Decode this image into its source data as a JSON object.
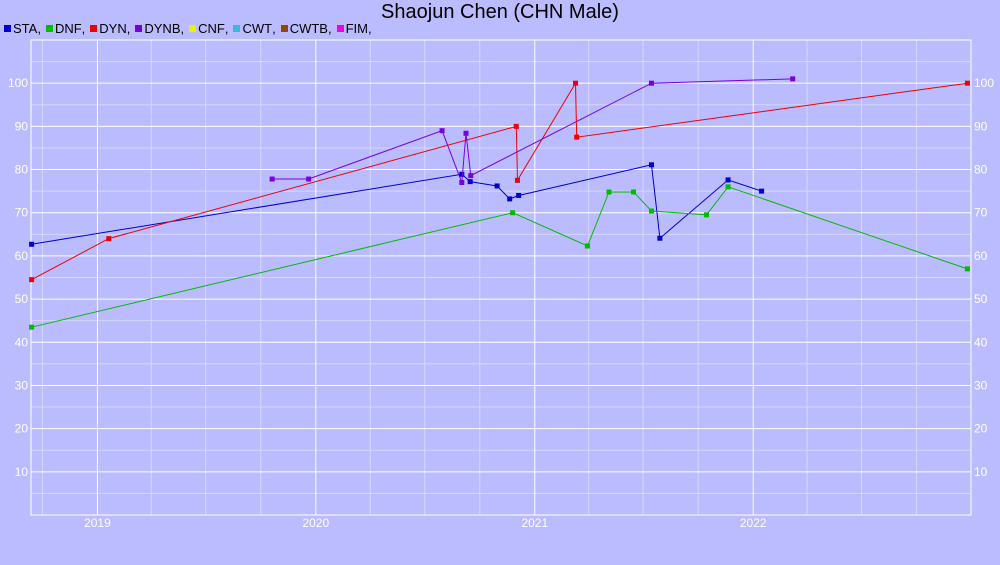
{
  "chart_data": {
    "type": "line",
    "title": "Shaojun Chen (CHN Male)",
    "xlabel": "",
    "ylabel": "",
    "x_ticks": [
      "2019",
      "2020",
      "2021",
      "2022"
    ],
    "y_ticks": [
      "10",
      "20",
      "30",
      "40",
      "50",
      "60",
      "70",
      "80",
      "90",
      "100"
    ],
    "ylim": [
      0,
      110
    ],
    "xlim": [
      "2018-09-12",
      "2022-12-31"
    ],
    "grid": true,
    "legend_position": "top-left",
    "legend": [
      {
        "name": "STA",
        "color": "#0000cc"
      },
      {
        "name": "DNF",
        "color": "#00bb00"
      },
      {
        "name": "DYN",
        "color": "#ee0000"
      },
      {
        "name": "DYNB",
        "color": "#7700dd"
      },
      {
        "name": "CNF",
        "color": "#eeee00"
      },
      {
        "name": "CWT",
        "color": "#33bbdd"
      },
      {
        "name": "CWTB",
        "color": "#994400"
      },
      {
        "name": "FIM",
        "color": "#ee00ee"
      }
    ],
    "series": [
      {
        "name": "STA",
        "color": "#0000cc",
        "points": [
          [
            "2018-09-13",
            62.7
          ],
          [
            "2020-09-01",
            78.9
          ],
          [
            "2020-09-15",
            77.2
          ],
          [
            "2020-10-30",
            76.2
          ],
          [
            "2020-11-20",
            73.2
          ],
          [
            "2020-12-05",
            74.0
          ],
          [
            "2021-07-15",
            81.1
          ],
          [
            "2021-07-29",
            64.1
          ],
          [
            "2021-11-20",
            77.6
          ],
          [
            "2022-01-15",
            75.0
          ]
        ]
      },
      {
        "name": "DNF",
        "color": "#00bb00",
        "points": [
          [
            "2018-09-13",
            43.5
          ],
          [
            "2020-11-25",
            70.0
          ],
          [
            "2021-03-30",
            62.3
          ],
          [
            "2021-05-05",
            74.8
          ],
          [
            "2021-06-15",
            74.8
          ],
          [
            "2021-07-15",
            70.4
          ],
          [
            "2021-10-15",
            69.5
          ],
          [
            "2021-11-20",
            76.0
          ],
          [
            "2022-12-25",
            57.0
          ]
        ]
      },
      {
        "name": "DYN",
        "color": "#ee0000",
        "points": [
          [
            "2018-09-13",
            54.5
          ],
          [
            "2019-01-20",
            64.0
          ],
          [
            "2020-12-01",
            90.0
          ],
          [
            "2020-12-03",
            77.5
          ],
          [
            "2021-03-10",
            100.0
          ],
          [
            "2021-03-12",
            87.5
          ],
          [
            "2022-12-25",
            100.0
          ]
        ]
      },
      {
        "name": "DYNB",
        "color": "#7700dd",
        "points": [
          [
            "2019-10-20",
            77.8
          ],
          [
            "2019-12-20",
            77.8
          ],
          [
            "2020-07-30",
            89.0
          ],
          [
            "2020-09-01",
            77.0
          ],
          [
            "2020-09-08",
            88.4
          ],
          [
            "2020-09-16",
            78.6
          ],
          [
            "2021-07-15",
            100.0
          ],
          [
            "2022-03-08",
            101.0
          ]
        ]
      }
    ]
  }
}
